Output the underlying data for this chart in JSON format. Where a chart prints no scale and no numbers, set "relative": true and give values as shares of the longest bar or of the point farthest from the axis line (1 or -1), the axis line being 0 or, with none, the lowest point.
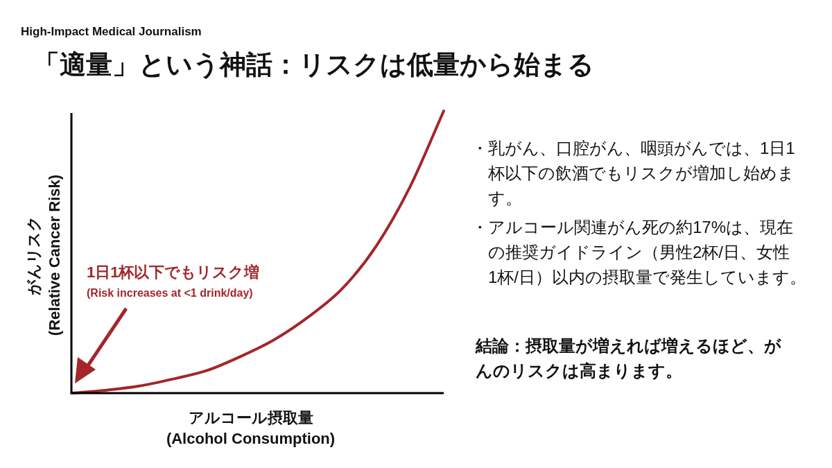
{
  "chart_data": {
    "type": "line",
    "relative": true,
    "subtitle": "High-Impact Medical Journalism",
    "title": "「適量」という神話：リスクは低量から始まる",
    "xlabel": "アルコール摂取量\n(Alcohol Consumption)",
    "ylabel": "がんリスク\n(Relative Cancer Risk)",
    "categories": [
      null,
      null,
      null,
      null,
      null,
      null,
      null,
      null,
      null,
      null,
      null,
      null
    ],
    "series": [
      {
        "color": "#a3262a",
        "values": [
          0,
          0.01,
          0.025,
          0.05,
          0.08,
          0.13,
          0.19,
          0.27,
          0.37,
          0.52,
          0.73,
          1.0
        ]
      }
    ],
    "annotations": [
      "1日1杯以下でもリスク増",
      "(Risk increases at <1 drink/day)",
      "・乳がん、口腔がん、咽頭がんでは、1日1杯以下の飲酒でもリスクが増加し始めます。",
      "・アルコール関連がん死の約17%は、現在の推奨ガイドライン（男性2杯/日、女性1杯/日）以内の摂取量で発生しています。",
      "結論：摂取量が増えれば増えるほど、がんのリスクは高まります。"
    ],
    "marker": "none",
    "line_style": "solid"
  }
}
